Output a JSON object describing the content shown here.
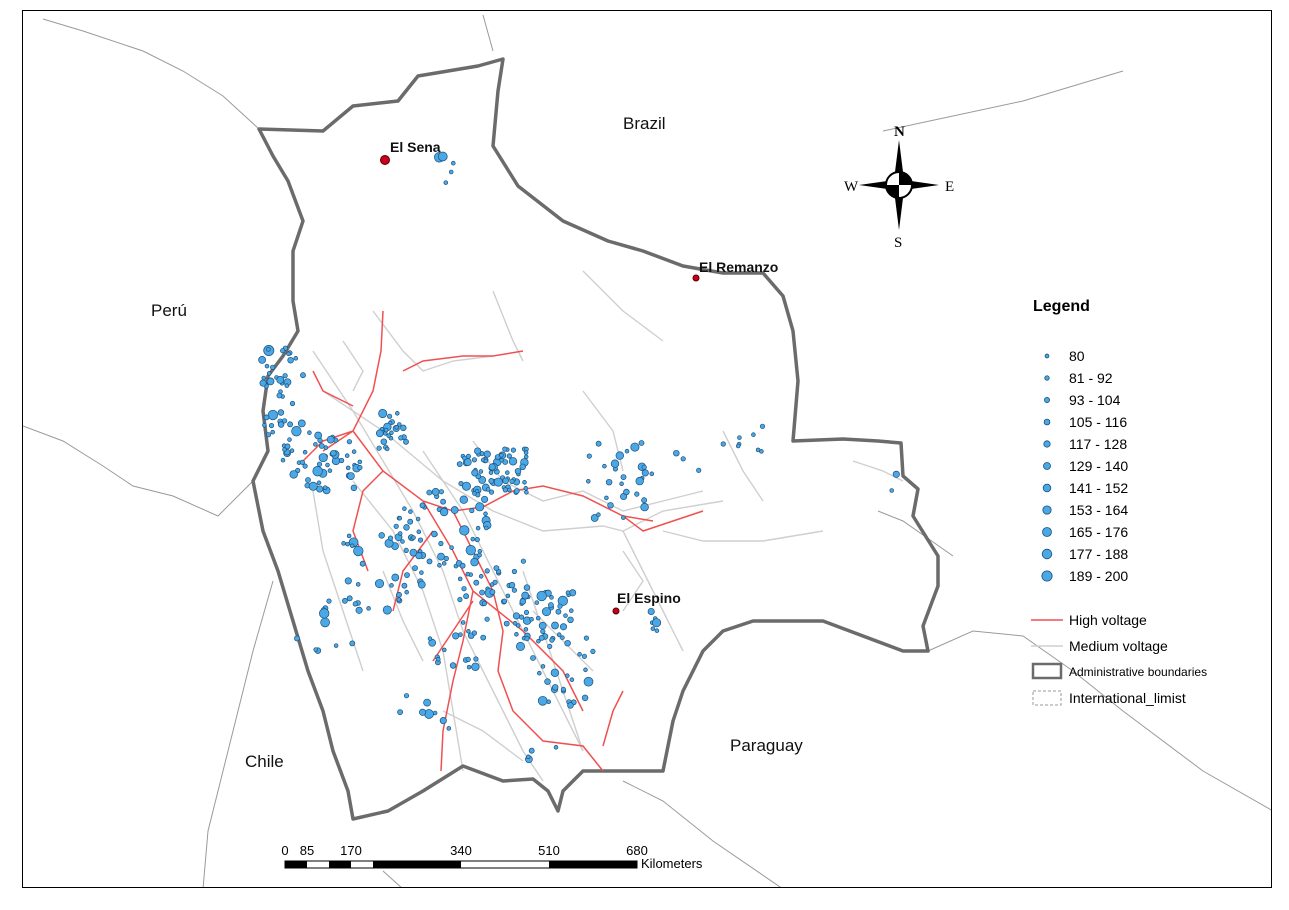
{
  "countries": {
    "brazil": "Brazil",
    "peru": "Perú",
    "chile": "Chile",
    "paraguay": "Paraguay"
  },
  "towns": [
    {
      "name": "El Sena",
      "dot": "large"
    },
    {
      "name": "El Remanzo",
      "dot": "small"
    },
    {
      "name": "El Espino",
      "dot": "small"
    }
  ],
  "compass": {
    "n": "N",
    "s": "S",
    "e": "E",
    "w": "W"
  },
  "legend": {
    "title": "Legend",
    "classes": [
      {
        "label": "80",
        "size": 1
      },
      {
        "label": "81 - 92",
        "size": 2
      },
      {
        "label": "93 - 104",
        "size": 3
      },
      {
        "label": "105 - 116",
        "size": 4
      },
      {
        "label": "117 - 128",
        "size": 5
      },
      {
        "label": "129 - 140",
        "size": 6
      },
      {
        "label": "141 - 152",
        "size": 7
      },
      {
        "label": "153 - 164",
        "size": 8
      },
      {
        "label": "165 - 176",
        "size": 9
      },
      {
        "label": "177 - 188",
        "size": 10
      },
      {
        "label": "189 - 200",
        "size": 11
      }
    ],
    "high_voltage": "High voltage",
    "medium_voltage": "Medium voltage",
    "admin_boundaries": "Administrative boundaries",
    "intl_limit": "International_limist"
  },
  "scale": {
    "ticks": [
      "0",
      "85",
      "170",
      "340",
      "510",
      "680"
    ],
    "unit": "Kilometers"
  },
  "colors": {
    "point_fill": "#4aa8e6",
    "point_stroke": "#1d4f78",
    "high_voltage": "#f05050",
    "medium_voltage": "#cfcfcf",
    "admin_boundary": "#6b6b6b",
    "intl_limit": "#9a9a9a",
    "town_dot": "#c8001e"
  }
}
